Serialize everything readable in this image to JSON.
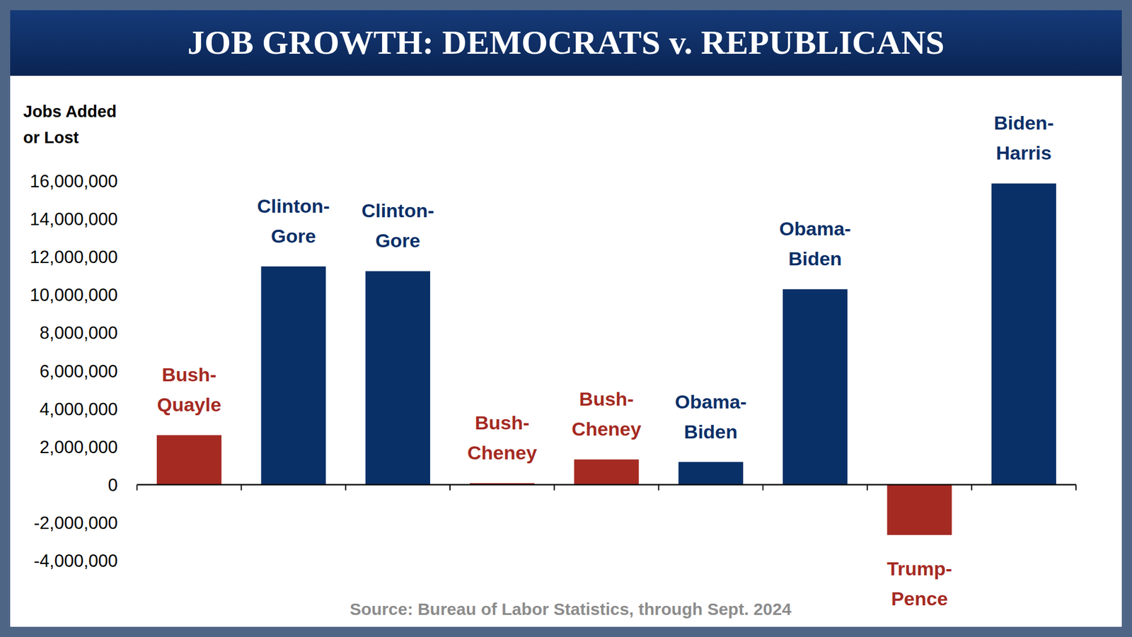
{
  "chart_data": {
    "type": "bar",
    "title": "JOB GROWTH: DEMOCRATS v. REPUBLICANS",
    "ylabel": "Jobs Added\nor Lost",
    "source": "Source: Bureau of Labor Statistics, through Sept. 2024",
    "categories": [
      "Bush-Quayle",
      "Clinton-Gore",
      "Clinton-Gore",
      "Bush-Cheney",
      "Bush-Cheney",
      "Obama-Biden",
      "Obama-Biden",
      "Trump-Pence",
      "Biden-Harris"
    ],
    "values": [
      2610000,
      11500000,
      11250000,
      80000,
      1330000,
      1200000,
      10300000,
      -2650000,
      15870000
    ],
    "colors": [
      "#a52a22",
      "#0a3068",
      "#0a3068",
      "#a52a22",
      "#a52a22",
      "#0a3068",
      "#0a3068",
      "#a52a22",
      "#0a3068"
    ],
    "ylim": [
      -4000000,
      16000000
    ],
    "yticks": [
      {
        "value": -4000000,
        "label": "-4,000,000"
      },
      {
        "value": -2000000,
        "label": "-2,000,000"
      },
      0,
      {
        "value": 2000000,
        "label": "2,000,000"
      },
      {
        "value": 4000000,
        "label": "4,000,000"
      },
      {
        "value": 6000000,
        "label": "6,000,000"
      },
      {
        "value": 8000000,
        "label": "8,000,000"
      },
      {
        "value": 10000000,
        "label": "10,000,000"
      },
      {
        "value": 12000000,
        "label": "12,000,000"
      },
      {
        "value": 14000000,
        "label": "14,000,000"
      },
      {
        "value": 16000000,
        "label": "16,000,000"
      }
    ],
    "grid": false,
    "data_labels": false
  }
}
